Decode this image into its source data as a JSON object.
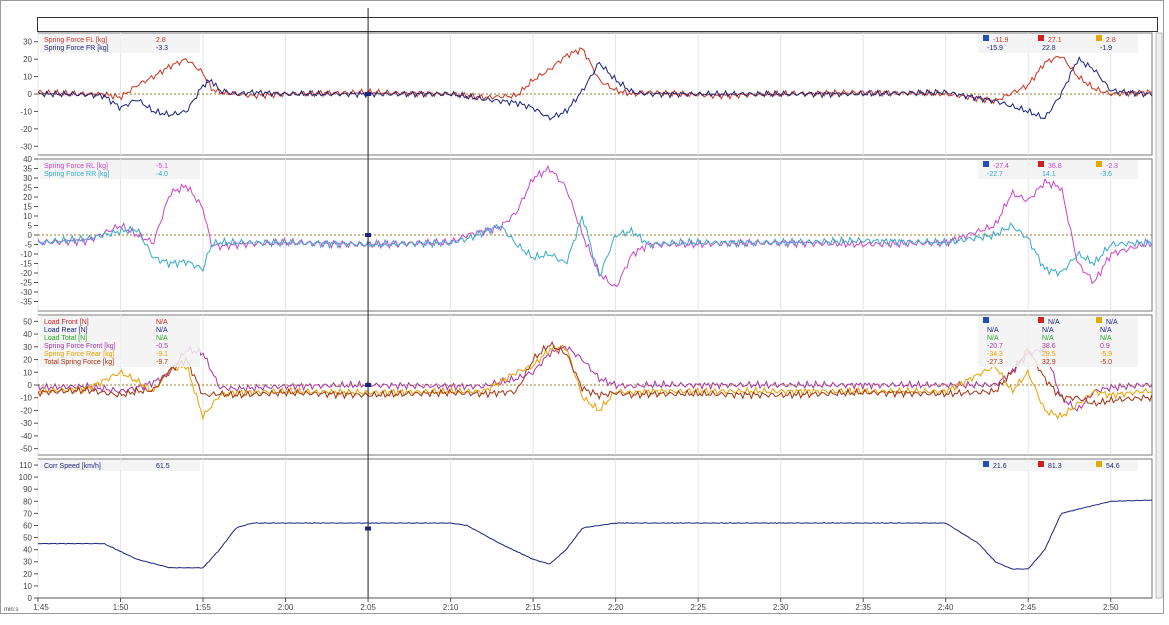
{
  "time_axis": {
    "unit": "min:s",
    "ticks": [
      "1:45",
      "1:50",
      "1:55",
      "2:00",
      "2:05",
      "2:10",
      "2:15",
      "2:20",
      "2:25",
      "2:30",
      "2:35",
      "2:40",
      "2:45",
      "2:50"
    ],
    "range_s": [
      105,
      172.5
    ]
  },
  "cursor_time_s": 125,
  "chart_data": [
    {
      "type": "line",
      "ylim": [
        -35,
        35
      ],
      "yticks": [
        "30",
        "20",
        "10",
        "0",
        "-10",
        "-20",
        "-30"
      ],
      "zero_line": true,
      "grid": "vertical",
      "legend": [
        {
          "name": "Spring Force FL [kg]",
          "value": "2.8",
          "color": "#cc3322"
        },
        {
          "name": "Spring Force FR [kg]",
          "value": "-3.3",
          "color": "#1a237e"
        }
      ],
      "stats": {
        "header_colors": [
          "#1f4fb0",
          "#cc2222",
          "#e6a800"
        ],
        "rows": [
          {
            "color": "#cc3322",
            "values": [
              "-11.9",
              "27.1",
              "2.8"
            ]
          },
          {
            "color": "#1a237e",
            "values": [
              "-15.9",
              "22.8",
              "-1.9"
            ]
          }
        ]
      },
      "x": [
        105,
        107,
        109,
        110,
        111,
        112,
        113,
        114,
        115,
        115.5,
        116,
        117,
        118,
        120,
        125,
        130,
        132,
        134,
        135,
        136,
        137,
        138,
        139,
        140,
        141,
        142,
        144,
        146,
        150,
        155,
        160,
        163,
        165,
        166,
        167,
        168,
        169,
        170,
        172
      ],
      "series": [
        {
          "color": "#cc3322",
          "values": [
            1,
            0,
            0,
            -2,
            5,
            10,
            16,
            20,
            12,
            3,
            1,
            0,
            -1,
            0,
            1,
            0,
            -2,
            -1,
            8,
            14,
            22,
            26,
            8,
            2,
            0,
            1,
            0,
            -1,
            0,
            1,
            0,
            -4,
            5,
            18,
            22,
            10,
            3,
            0,
            1
          ]
        },
        {
          "color": "#1a237e",
          "values": [
            0,
            0,
            -1,
            -8,
            -3,
            -10,
            -12,
            -10,
            5,
            8,
            2,
            0,
            1,
            0,
            0,
            0,
            -3,
            -5,
            -8,
            -14,
            -10,
            2,
            18,
            8,
            1,
            0,
            0,
            0,
            0,
            0,
            1,
            -4,
            -10,
            -14,
            0,
            20,
            14,
            2,
            0
          ]
        }
      ]
    },
    {
      "type": "line",
      "ylim": [
        -40,
        40
      ],
      "yticks": [
        "40",
        "35",
        "30",
        "25",
        "20",
        "15",
        "10",
        "5",
        "0",
        "-5",
        "-10",
        "-15",
        "-20",
        "-25",
        "-30",
        "-35"
      ],
      "zero_line": true,
      "grid": "vertical",
      "legend": [
        {
          "name": "Spring Force RL [kg]",
          "value": "-5.1",
          "color": "#cc44cc"
        },
        {
          "name": "Spring Force RR [kg]",
          "value": "-4.0",
          "color": "#33aacc"
        }
      ],
      "stats": {
        "header_colors": [
          "#1f4fb0",
          "#cc2222",
          "#e6a800"
        ],
        "rows": [
          {
            "color": "#cc44cc",
            "values": [
              "-27.4",
              "36.8",
              "-2.3"
            ]
          },
          {
            "color": "#33aacc",
            "values": [
              "-22.7",
              "14.1",
              "-3.6"
            ]
          }
        ]
      },
      "x": [
        105,
        108,
        110,
        111,
        112,
        113,
        114,
        115,
        115.5,
        116,
        117,
        120,
        125,
        130,
        131,
        133,
        134,
        135,
        136,
        137,
        138,
        139,
        140,
        141,
        142,
        144,
        150,
        155,
        160,
        163,
        164,
        165,
        166,
        167,
        168,
        169,
        170,
        172
      ],
      "series": [
        {
          "color": "#cc44cc",
          "values": [
            -4,
            -3,
            5,
            0,
            -4,
            22,
            26,
            14,
            -5,
            -6,
            -5,
            -4,
            -5,
            -4,
            0,
            4,
            12,
            30,
            35,
            25,
            0,
            -20,
            -28,
            -10,
            -5,
            -5,
            -4,
            -5,
            -4,
            5,
            22,
            18,
            28,
            25,
            -15,
            -25,
            -10,
            -5
          ]
        },
        {
          "color": "#33aacc",
          "values": [
            -4,
            -2,
            2,
            3,
            -12,
            -15,
            -14,
            -18,
            -5,
            -4,
            -4,
            -4,
            -5,
            -4,
            -2,
            5,
            -5,
            -12,
            -10,
            -15,
            10,
            -22,
            0,
            2,
            -5,
            -4,
            -4,
            -3,
            -4,
            0,
            5,
            -2,
            -18,
            -20,
            -10,
            -15,
            -5,
            -4
          ]
        }
      ]
    },
    {
      "type": "line",
      "ylim": [
        -55,
        55
      ],
      "yticks": [
        "50",
        "40",
        "30",
        "20",
        "10",
        "0",
        "-10",
        "-20",
        "-30",
        "-40",
        "-50"
      ],
      "zero_line": true,
      "grid": "vertical",
      "legend": [
        {
          "name": "Load Front [N]",
          "value": "N/A",
          "color": "#cc2222"
        },
        {
          "name": "Load Rear [N]",
          "value": "N/A",
          "color": "#1a237e"
        },
        {
          "name": "Load Total [N]",
          "value": "N/A",
          "color": "#22aa22"
        },
        {
          "name": "Spring Force Front [kg]",
          "value": "-0.5",
          "color": "#aa33aa"
        },
        {
          "name": "Spring Force Rear [kg]",
          "value": "-9.1",
          "color": "#e8a000"
        },
        {
          "name": "Total Spring Force [kg]",
          "value": "-9.7",
          "color": "#a33312"
        }
      ],
      "stats": {
        "header_colors": [
          "#1f4fb0",
          "#cc2222",
          "#e6a800"
        ],
        "rows": [
          {
            "color": "#1a237e",
            "values": [
              "",
              "N/A",
              "N/A"
            ]
          },
          {
            "color": "#1a237e",
            "values": [
              "N/A",
              "N/A",
              "N/A"
            ]
          },
          {
            "color": "#22aa22",
            "values": [
              "N/A",
              "N/A",
              "N/A"
            ]
          },
          {
            "color": "#aa33aa",
            "values": [
              "-20.7",
              "38.6",
              "0.9"
            ]
          },
          {
            "color": "#e8a000",
            "values": [
              "-34.3",
              "29.5",
              "-5.9"
            ]
          },
          {
            "color": "#a33312",
            "values": [
              "-27.3",
              "32.9",
              "-5.0"
            ]
          }
        ]
      },
      "x": [
        105,
        108,
        110,
        111,
        112,
        113,
        114,
        115,
        116,
        117,
        120,
        125,
        130,
        132,
        134,
        135,
        136,
        137,
        138,
        139,
        140,
        141,
        142,
        145,
        150,
        155,
        160,
        163,
        164,
        165,
        166,
        167,
        168,
        169,
        170,
        172
      ],
      "series": [
        {
          "color": "#aa33aa",
          "values": [
            -2,
            -1,
            -5,
            -2,
            2,
            10,
            28,
            25,
            -2,
            -3,
            -1,
            0,
            -1,
            -1,
            5,
            10,
            25,
            30,
            20,
            5,
            0,
            -1,
            0,
            0,
            0,
            0,
            0,
            0,
            10,
            25,
            28,
            -10,
            -20,
            -5,
            -2,
            0
          ]
        },
        {
          "color": "#e8a000",
          "values": [
            -5,
            -3,
            10,
            3,
            -5,
            12,
            15,
            -25,
            -8,
            -6,
            -5,
            -6,
            -5,
            -5,
            10,
            15,
            28,
            30,
            -10,
            -20,
            -5,
            -6,
            -5,
            -5,
            -5,
            -5,
            -5,
            15,
            -5,
            10,
            -20,
            -25,
            -15,
            -5,
            -8,
            -5
          ]
        },
        {
          "color": "#a33312",
          "values": [
            -6,
            -4,
            -8,
            -5,
            -4,
            12,
            20,
            -8,
            -7,
            -8,
            -6,
            -8,
            -6,
            -7,
            -5,
            20,
            32,
            25,
            -3,
            -8,
            -6,
            -8,
            -7,
            -7,
            -8,
            -6,
            -7,
            -5,
            10,
            28,
            5,
            -10,
            -10,
            -15,
            -12,
            -10
          ]
        }
      ]
    },
    {
      "type": "line",
      "ylim": [
        0,
        115
      ],
      "yticks": [
        "110",
        "100",
        "90",
        "80",
        "70",
        "60",
        "50",
        "40",
        "30",
        "20",
        "10",
        "0"
      ],
      "zero_line": false,
      "grid": "vertical",
      "legend": [
        {
          "name": "Corr Speed [km/h]",
          "value": "61.5",
          "color": "#1a237e"
        }
      ],
      "stats": {
        "header_colors": [
          "#1f4fb0",
          "#cc2222",
          "#e6a800"
        ],
        "rows": [
          {
            "color": "#1a237e",
            "values": [
              "21.6",
              "81.3",
              "54.6"
            ]
          }
        ]
      },
      "x": [
        105,
        109,
        111,
        113,
        114,
        115,
        116,
        117,
        118,
        125,
        130,
        131,
        133,
        135,
        136,
        137,
        138,
        140,
        150,
        155,
        160,
        162,
        163,
        164,
        165,
        166,
        167,
        170,
        172.5
      ],
      "series": [
        {
          "color": "#1a237e",
          "values": [
            45,
            45,
            32,
            25,
            25,
            25,
            40,
            58,
            62,
            62,
            62,
            60,
            45,
            32,
            28,
            40,
            58,
            62,
            62,
            62,
            62,
            45,
            30,
            24,
            24,
            40,
            70,
            80,
            81
          ]
        }
      ]
    }
  ]
}
